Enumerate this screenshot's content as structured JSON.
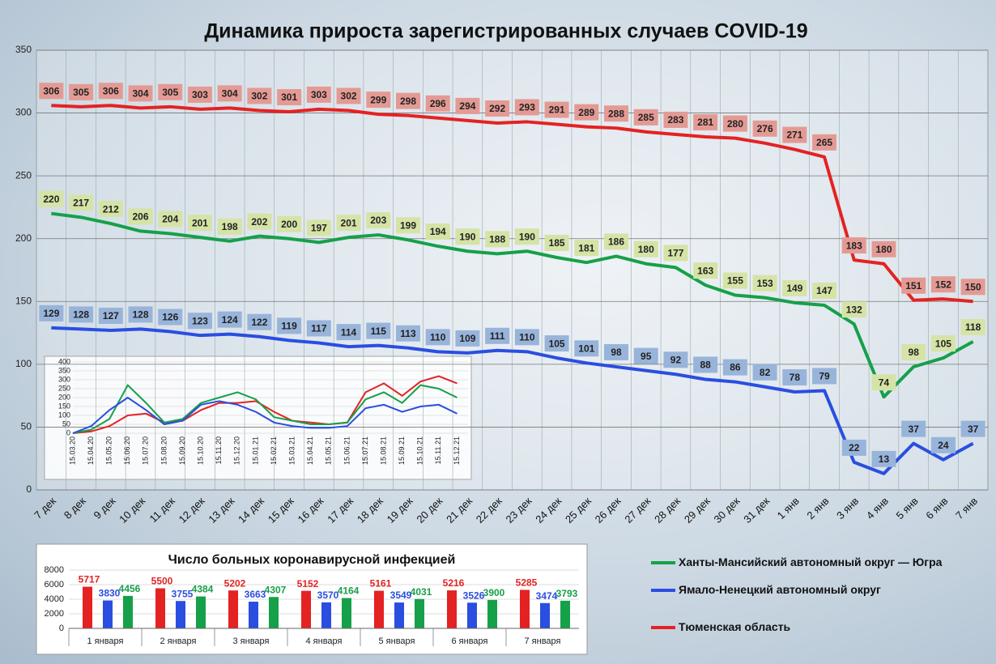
{
  "chart_data": [
    {
      "type": "line",
      "title": "Динамика прироста зарегистрированных случаев COVID-19",
      "categories": [
        "7 дек",
        "8 дек",
        "9 дек",
        "10 дек",
        "11 дек",
        "12 дек",
        "13 дек",
        "14 дек",
        "15 дек",
        "16 дек",
        "17 дек",
        "18 дек",
        "19 дек",
        "20 дек",
        "21 дек",
        "22 дек",
        "23 дек",
        "24 дек",
        "25 дек",
        "26 дек",
        "27 дек",
        "28 дек",
        "29 дек",
        "30 дек",
        "31 дек",
        "1 янв",
        "2 янв",
        "3 янв",
        "4 янв",
        "5 янв",
        "6 янв",
        "7 янв"
      ],
      "series": [
        {
          "name": "Ханты-Мансийский автономный округ — Югра",
          "color": "#16a049",
          "label_color": "#d5e3a6",
          "values": [
            220,
            217,
            212,
            206,
            204,
            201,
            198,
            202,
            200,
            197,
            201,
            203,
            199,
            194,
            190,
            188,
            190,
            185,
            181,
            186,
            180,
            177,
            163,
            155,
            153,
            149,
            147,
            132,
            74,
            98,
            105,
            118
          ]
        },
        {
          "name": "Ямало-Ненецкий автономный округ",
          "color": "#2a4ee0",
          "label_color": "#98b4da",
          "values": [
            129,
            128,
            127,
            128,
            126,
            123,
            124,
            122,
            119,
            117,
            114,
            115,
            113,
            110,
            109,
            111,
            110,
            105,
            101,
            98,
            95,
            92,
            88,
            86,
            82,
            78,
            79,
            22,
            13,
            37,
            24,
            37
          ]
        },
        {
          "name": "Тюменская область",
          "color": "#e42222",
          "label_color": "#e49a94",
          "values": [
            306,
            305,
            306,
            304,
            305,
            303,
            304,
            302,
            301,
            303,
            302,
            299,
            298,
            296,
            294,
            292,
            293,
            291,
            289,
            288,
            285,
            283,
            281,
            280,
            276,
            271,
            265,
            183,
            180,
            151,
            152,
            150
          ]
        }
      ],
      "ylim": [
        0,
        350
      ],
      "yticks": [
        0,
        50,
        100,
        150,
        200,
        250,
        300,
        350
      ],
      "grid": true,
      "legend": "right"
    },
    {
      "type": "line",
      "categories": [
        "15.03.20",
        "15.04.20",
        "15.05.20",
        "15.06.20",
        "15.07.20",
        "15.08.20",
        "15.09.20",
        "15.10.20",
        "15.11.20",
        "15.12.20",
        "15.01.21",
        "15.02.21",
        "15.03.21",
        "15.04.21",
        "15.05.21",
        "15.06.21",
        "15.07.21",
        "15.08.21",
        "15.09.21",
        "15.10.21",
        "15.11.21",
        "15.12.21"
      ],
      "series": [
        {
          "color": "#16a049",
          "values": [
            0,
            20,
            80,
            270,
            170,
            60,
            80,
            170,
            200,
            230,
            190,
            90,
            70,
            50,
            50,
            60,
            190,
            230,
            170,
            270,
            250,
            200
          ]
        },
        {
          "color": "#2a4ee0",
          "values": [
            0,
            40,
            130,
            200,
            130,
            50,
            70,
            160,
            180,
            160,
            120,
            60,
            40,
            30,
            30,
            40,
            140,
            160,
            120,
            150,
            160,
            110
          ]
        },
        {
          "color": "#e42222",
          "values": [
            0,
            10,
            40,
            100,
            110,
            60,
            70,
            130,
            170,
            170,
            180,
            120,
            70,
            60,
            50,
            60,
            230,
            280,
            210,
            290,
            320,
            280
          ]
        }
      ],
      "ylim": [
        0,
        400
      ],
      "yticks": [
        0,
        50,
        100,
        150,
        200,
        250,
        300,
        350,
        400
      ],
      "grid": true
    },
    {
      "type": "bar",
      "title": "Число больных коронавирусной инфекцией",
      "categories": [
        "1 января",
        "2 января",
        "3 января",
        "4 января",
        "5 января",
        "6 января",
        "7 января"
      ],
      "series": [
        {
          "color": "#e42222",
          "values": [
            5717,
            5500,
            5202,
            5152,
            5161,
            5216,
            5285
          ]
        },
        {
          "color": "#2a4ee0",
          "values": [
            3830,
            3755,
            3663,
            3570,
            3549,
            3526,
            3474
          ]
        },
        {
          "color": "#16a049",
          "values": [
            4456,
            4384,
            4307,
            4164,
            4031,
            3900,
            3793
          ]
        }
      ],
      "ylim": [
        0,
        8000
      ],
      "yticks": [
        0,
        2000,
        4000,
        6000,
        8000
      ],
      "grid": true
    }
  ]
}
